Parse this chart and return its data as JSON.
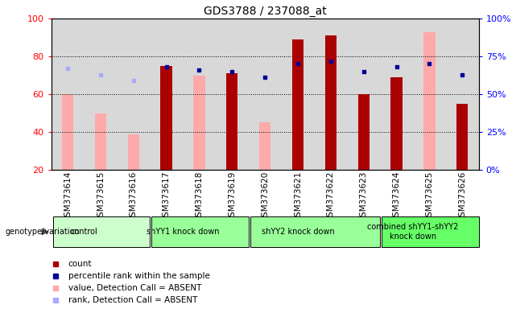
{
  "title": "GDS3788 / 237088_at",
  "samples": [
    "GSM373614",
    "GSM373615",
    "GSM373616",
    "GSM373617",
    "GSM373618",
    "GSM373619",
    "GSM373620",
    "GSM373621",
    "GSM373622",
    "GSM373623",
    "GSM373624",
    "GSM373625",
    "GSM373626"
  ],
  "count": [
    null,
    null,
    null,
    75,
    null,
    71,
    null,
    89,
    91,
    60,
    69,
    null,
    55
  ],
  "percentile_rank": [
    null,
    null,
    null,
    68,
    66,
    65,
    61,
    70,
    72,
    65,
    68,
    70,
    63
  ],
  "value_absent": [
    60,
    50,
    39,
    null,
    70,
    null,
    45,
    null,
    null,
    null,
    null,
    93,
    null
  ],
  "rank_absent": [
    67,
    63,
    59,
    null,
    null,
    null,
    61,
    null,
    null,
    null,
    null,
    null,
    null
  ],
  "groups": [
    {
      "label": "control",
      "start": 0,
      "end": 3,
      "color": "#ccffcc"
    },
    {
      "label": "shYY1 knock down",
      "start": 3,
      "end": 6,
      "color": "#99ff99"
    },
    {
      "label": "shYY2 knock down",
      "start": 6,
      "end": 10,
      "color": "#99ff99"
    },
    {
      "label": "combined shYY1-shYY2\nknock down",
      "start": 10,
      "end": 13,
      "color": "#66ff66"
    }
  ],
  "ylim": [
    20,
    100
  ],
  "y2lim": [
    0,
    100
  ],
  "y_ticks": [
    20,
    40,
    60,
    80,
    100
  ],
  "y2_ticks": [
    0,
    25,
    50,
    75,
    100
  ],
  "count_color": "#aa0000",
  "percentile_color": "#000099",
  "value_absent_color": "#ffaaaa",
  "rank_absent_color": "#aaaaff",
  "bg_color": "#d8d8d8",
  "plot_bg": "#ffffff",
  "grid_color": "#000000",
  "label_fontsize": 7.5,
  "title_fontsize": 10
}
